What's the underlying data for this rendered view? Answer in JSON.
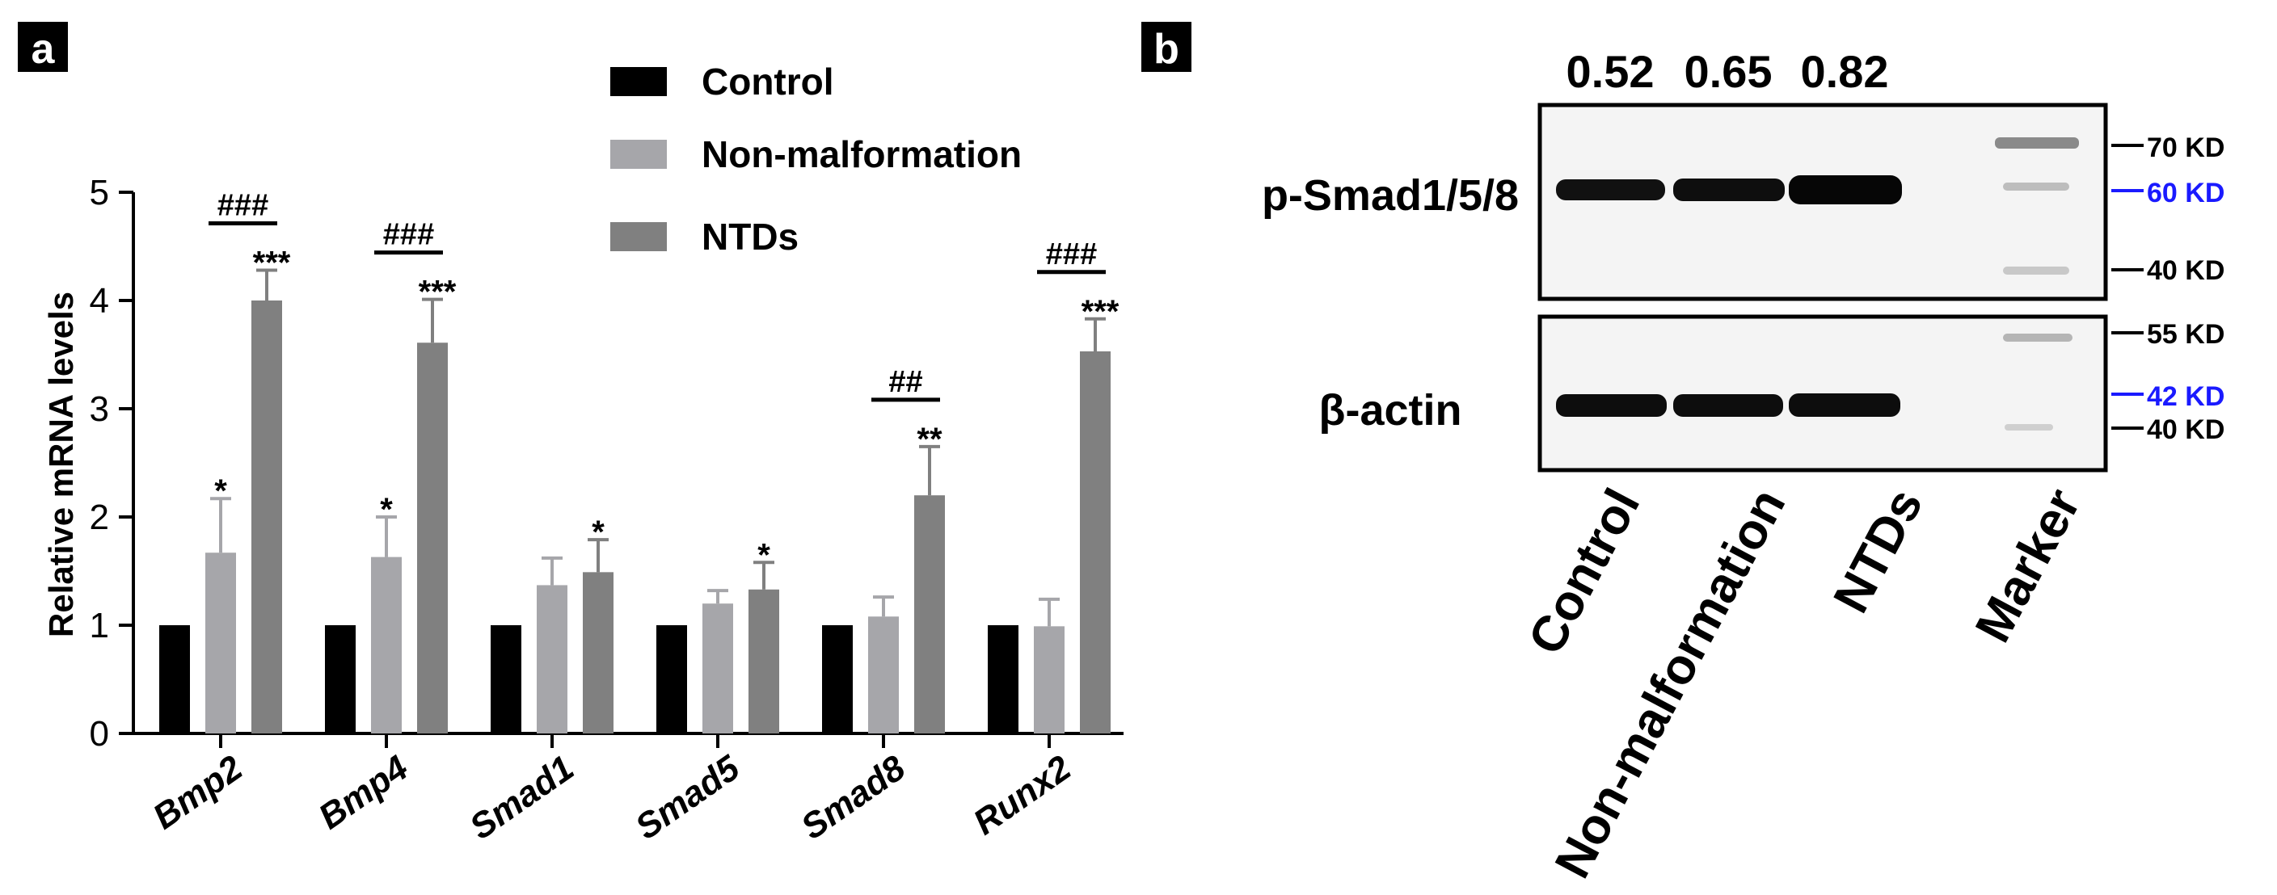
{
  "panel_a": {
    "label": "a",
    "chart_data": {
      "type": "bar",
      "title": "",
      "xlabel": "",
      "ylabel": "Relative mRNA levels",
      "ylim": [
        0,
        5
      ],
      "yticks": [
        "0",
        "1",
        "2",
        "3",
        "4",
        "5"
      ],
      "categories": [
        "Bmp2",
        "Bmp4",
        "Smad1",
        "Smad5",
        "Smad8",
        "Runx2"
      ],
      "legend_position": "top-right",
      "series": [
        {
          "name": "Control",
          "color": "#000000",
          "values": [
            1,
            1,
            1,
            1,
            1,
            1
          ],
          "errors": [
            0,
            0,
            0,
            0,
            0,
            0
          ],
          "sig": [
            "",
            "",
            "",
            "",
            "",
            ""
          ]
        },
        {
          "name": "Non-malformation",
          "color": "#a6a6aa",
          "values": [
            1.67,
            1.63,
            1.37,
            1.2,
            1.08,
            0.99
          ],
          "errors": [
            0.5,
            0.37,
            0.25,
            0.12,
            0.18,
            0.25
          ],
          "sig": [
            "*",
            "*",
            "",
            "",
            "",
            ""
          ]
        },
        {
          "name": "NTDs",
          "color": "#808080",
          "values": [
            4.0,
            3.61,
            1.49,
            1.33,
            2.2,
            3.53
          ],
          "errors": [
            0.28,
            0.4,
            0.3,
            0.25,
            0.45,
            0.3
          ],
          "sig": [
            "***",
            "***",
            "*",
            "*",
            "**",
            "***"
          ]
        }
      ],
      "comparisons": [
        "###",
        "###",
        "",
        "",
        "##",
        "###"
      ]
    }
  },
  "panel_b": {
    "label": "b",
    "densities": [
      "0.52",
      "0.65",
      "0.82"
    ],
    "rows": [
      "p-Smad1/5/8",
      "β-actin"
    ],
    "lanes": [
      "Control",
      "Non-malformation",
      "NTDs",
      "Marker"
    ],
    "top_markers": [
      {
        "label": "70 KD",
        "color": "#000000"
      },
      {
        "label": "60 KD",
        "color": "#1a1aff"
      },
      {
        "label": "40 KD",
        "color": "#000000"
      }
    ],
    "bottom_markers": [
      {
        "label": "55 KD",
        "color": "#000000"
      },
      {
        "label": "42 KD",
        "color": "#1a1aff"
      },
      {
        "label": "40 KD",
        "color": "#000000"
      }
    ]
  }
}
